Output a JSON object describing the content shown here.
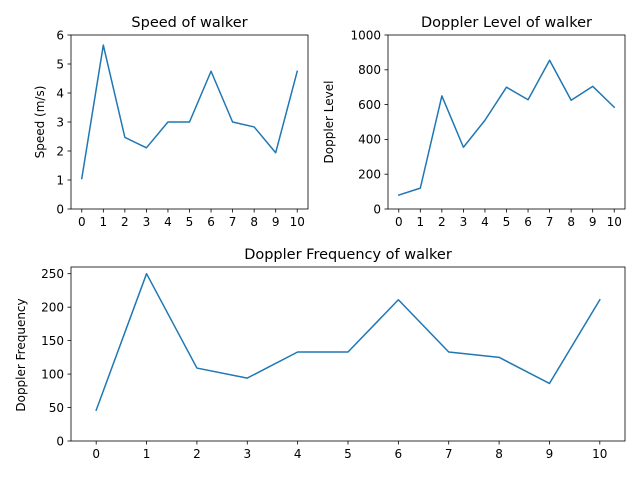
{
  "chart_data": [
    {
      "type": "line",
      "title": "Speed of walker",
      "xlabel": "",
      "ylabel": "Speed (m/s)",
      "x": [
        0,
        1,
        2,
        3,
        4,
        5,
        6,
        7,
        8,
        9,
        10
      ],
      "y": [
        1.05,
        5.65,
        2.47,
        2.11,
        3.0,
        3.0,
        4.75,
        3.0,
        2.83,
        1.94,
        4.75
      ],
      "xticks": [
        0,
        1,
        2,
        3,
        4,
        5,
        6,
        7,
        8,
        9,
        10
      ],
      "yticks": [
        0,
        1,
        2,
        3,
        4,
        5,
        6
      ],
      "ylim": [
        0,
        6
      ],
      "color": "#1f77b4",
      "grid": false
    },
    {
      "type": "line",
      "title": "Doppler Level of walker",
      "xlabel": "",
      "ylabel": "Doppler Level",
      "x": [
        0,
        1,
        2,
        3,
        4,
        5,
        6,
        7,
        8,
        9,
        10
      ],
      "y": [
        80,
        120,
        650,
        355,
        510,
        700,
        628,
        855,
        625,
        705,
        585
      ],
      "xticks": [
        0,
        1,
        2,
        3,
        4,
        5,
        6,
        7,
        8,
        9,
        10
      ],
      "yticks": [
        0,
        200,
        400,
        600,
        800,
        1000
      ],
      "ylim": [
        0,
        1000
      ],
      "color": "#1f77b4",
      "grid": false
    },
    {
      "type": "line",
      "title": "Doppler Frequency of walker",
      "xlabel": "",
      "ylabel": "Doppler Frequency",
      "x": [
        0,
        1,
        2,
        3,
        4,
        5,
        6,
        7,
        8,
        9,
        10
      ],
      "y": [
        46,
        250,
        109,
        94,
        133,
        133,
        211,
        133,
        125,
        86,
        211
      ],
      "xticks": [
        0,
        1,
        2,
        3,
        4,
        5,
        6,
        7,
        8,
        9,
        10
      ],
      "yticks": [
        0,
        50,
        100,
        150,
        200,
        250
      ],
      "ylim": [
        0,
        260
      ],
      "color": "#1f77b4",
      "grid": false
    }
  ]
}
